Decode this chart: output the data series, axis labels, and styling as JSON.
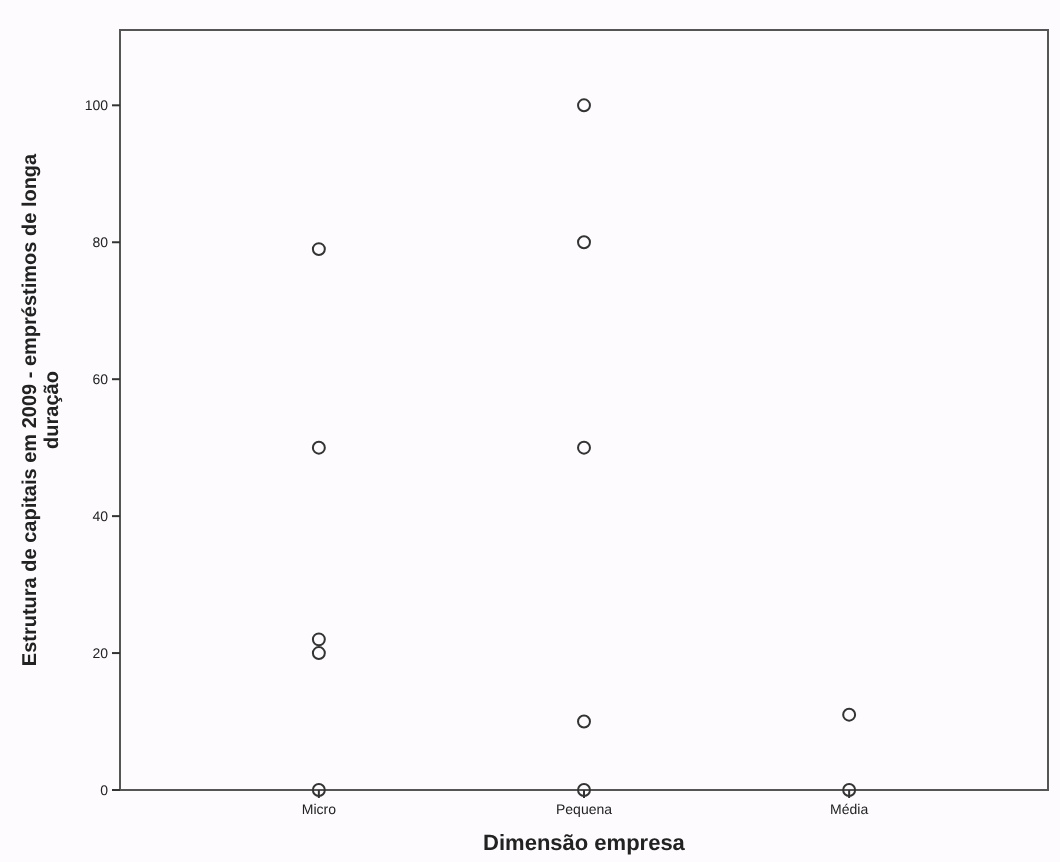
{
  "chart_data": {
    "type": "scatter",
    "xlabel": "Dimensão empresa",
    "ylabel": "Estrutura de capitais em 2009 - empréstimos de longa duração",
    "categories": [
      "Micro",
      "Pequena",
      "Média"
    ],
    "series": [
      {
        "color": "#333333",
        "x": [
          "Micro",
          "Micro",
          "Micro",
          "Micro",
          "Micro",
          "Pequena",
          "Pequena",
          "Pequena",
          "Pequena",
          "Pequena",
          "Média",
          "Média"
        ],
        "values": [
          79,
          50,
          22,
          20,
          0,
          100,
          80,
          50,
          10,
          0,
          11,
          0
        ]
      }
    ],
    "ylim": [
      0,
      111
    ],
    "yticks": [
      0,
      20,
      40,
      60,
      80,
      100
    ],
    "marker": "circle",
    "grid": false
  }
}
